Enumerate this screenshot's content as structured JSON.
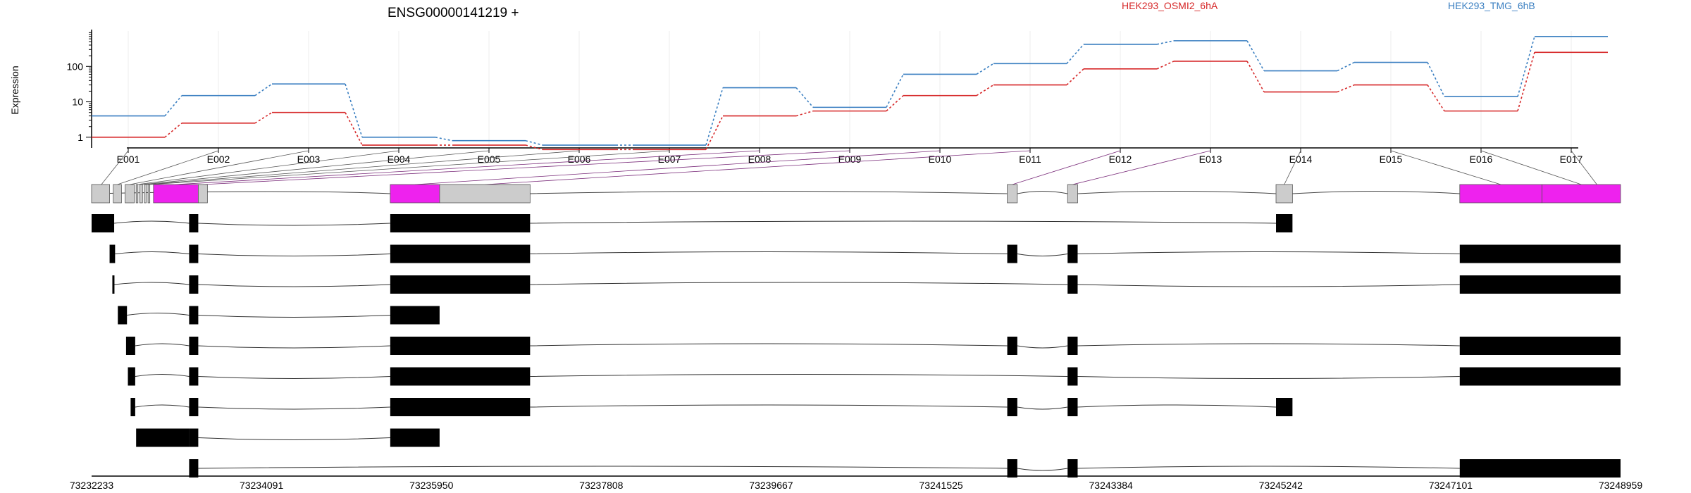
{
  "title": "ENSG00000141219 +",
  "ylabel": "Expression",
  "colors": {
    "series_0": "#d62728",
    "series_1": "#3a7fc1",
    "utr": "#cccccc",
    "cds": "#ee22ee",
    "transcript": "#000000",
    "link": "#7a2c7a"
  },
  "chart_data": {
    "type": "line",
    "scale": "log",
    "ylim": [
      0.5,
      1000
    ],
    "yticks": [
      1,
      10,
      100
    ],
    "ytick_labels": [
      "1",
      "10",
      "100"
    ],
    "categories": [
      "E001",
      "E002",
      "E003",
      "E004",
      "E005",
      "E006",
      "E007",
      "E008",
      "E009",
      "E010",
      "E011",
      "E012",
      "E013",
      "E014",
      "E015",
      "E016",
      "E017"
    ],
    "series": [
      {
        "name": "HEK293_OSMI2_6hA",
        "values": [
          1.0,
          2.5,
          5.0,
          0.6,
          0.6,
          0.45,
          0.45,
          4.0,
          5.5,
          15,
          30,
          85,
          140,
          19,
          30,
          5.5,
          250
        ]
      },
      {
        "name": "HEK293_TMG_6hB",
        "values": [
          4.0,
          15,
          32,
          1.0,
          0.8,
          0.6,
          0.6,
          25,
          7.0,
          60,
          120,
          420,
          530,
          75,
          130,
          14,
          700
        ]
      }
    ],
    "genome": {
      "start": 73232233,
      "end": 73248959,
      "axis_ticks": [
        "73232233",
        "73234091",
        "73235950",
        "73237808",
        "73239667",
        "73241525",
        "73243384",
        "73245242",
        "73247101",
        "73248959"
      ],
      "gene_exons": [
        [
          73232233,
          73232430,
          "utr"
        ],
        [
          73232470,
          73232560,
          "utr"
        ],
        [
          73232600,
          73232700,
          "utr"
        ],
        [
          73232720,
          73232740,
          "utr"
        ],
        [
          73232760,
          73232790,
          "utr"
        ],
        [
          73232810,
          73232830,
          "utr"
        ],
        [
          73232850,
          73232870,
          "utr"
        ],
        [
          73232910,
          73233400,
          "cds"
        ],
        [
          73233400,
          73233500,
          "utr"
        ],
        [
          73235500,
          73236040,
          "cds"
        ],
        [
          73236040,
          73237030,
          "utr"
        ],
        [
          73242250,
          73242360,
          "utr"
        ],
        [
          73242910,
          73243020,
          "utr"
        ],
        [
          73245190,
          73245370,
          "utr"
        ],
        [
          73247200,
          73248100,
          "cds"
        ],
        [
          73248100,
          73248959,
          "cds"
        ]
      ],
      "exon_link_positions": [
        73232340,
        73232515,
        73232650,
        73232730,
        73232775,
        73232820,
        73232860,
        73233150,
        73233450,
        73235770,
        73236540,
        73242305,
        73242965,
        73245280,
        73247650,
        73248530,
        73248700
      ],
      "transcripts": [
        [
          [
            73232233,
            73232480
          ],
          [
            73233300,
            73233400
          ],
          [
            73235500,
            73237030
          ],
          [
            73245190,
            73245370
          ]
        ],
        [
          [
            73232430,
            73232490
          ],
          [
            73233300,
            73233400
          ],
          [
            73235500,
            73237030
          ],
          [
            73242250,
            73242360
          ],
          [
            73242910,
            73243020
          ],
          [
            73247200,
            73248959
          ]
        ],
        [
          [
            73232460,
            73232480
          ],
          [
            73233300,
            73233400
          ],
          [
            73235500,
            73237030
          ],
          [
            73242910,
            73243020
          ],
          [
            73247200,
            73248959
          ]
        ],
        [
          [
            73232520,
            73232620
          ],
          [
            73233300,
            73233400
          ],
          [
            73235500,
            73236040
          ]
        ],
        [
          [
            73232610,
            73232710
          ],
          [
            73233300,
            73233400
          ],
          [
            73235500,
            73237030
          ],
          [
            73242250,
            73242360
          ],
          [
            73242910,
            73243020
          ],
          [
            73247200,
            73248959
          ]
        ],
        [
          [
            73232630,
            73232710
          ],
          [
            73233300,
            73233400
          ],
          [
            73235500,
            73237030
          ],
          [
            73242910,
            73243020
          ],
          [
            73247200,
            73248959
          ]
        ],
        [
          [
            73232660,
            73232710
          ],
          [
            73233300,
            73233400
          ],
          [
            73235500,
            73237030
          ],
          [
            73242250,
            73242360
          ],
          [
            73242910,
            73243020
          ],
          [
            73245190,
            73245370
          ]
        ],
        [
          [
            73232720,
            73233300
          ],
          [
            73233300,
            73233400
          ],
          [
            73235500,
            73236040
          ]
        ],
        [
          [
            73233300,
            73233400
          ],
          [
            73242250,
            73242360
          ],
          [
            73242910,
            73243020
          ],
          [
            73247200,
            73248959
          ]
        ]
      ]
    }
  }
}
